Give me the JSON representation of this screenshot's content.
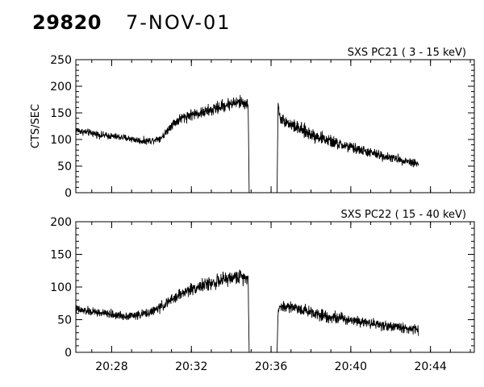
{
  "header": {
    "obs_id": "29820",
    "date": "7-NOV-01"
  },
  "chart_data": [
    {
      "type": "line",
      "title": "SXS PC21  (  3 - 15 keV)",
      "ylabel": "CTS/SEC",
      "xlabel": "",
      "x_unit": "minutes after 20:00 UT",
      "xlim": [
        26.2,
        46.2
      ],
      "ylim": [
        0,
        250
      ],
      "yticks": [
        0,
        50,
        100,
        150,
        200,
        250
      ],
      "xticks": [
        {
          "value": 28,
          "label": "20:28"
        },
        {
          "value": 32,
          "label": "20:32"
        },
        {
          "value": 36,
          "label": "20:36"
        },
        {
          "value": 40,
          "label": "20:40"
        },
        {
          "value": 44,
          "label": "20:44"
        }
      ],
      "gap": [
        34.9,
        36.3
      ],
      "series": [
        {
          "x": [
            26.2,
            26.5,
            27.0,
            27.5,
            28.0,
            28.5,
            29.0,
            29.5,
            30.0,
            30.5,
            30.7,
            31.0,
            31.5,
            32.0,
            32.5,
            33.0,
            33.5,
            34.0,
            34.5,
            34.7,
            34.85,
            34.9,
            36.3,
            36.35,
            36.45,
            37.0,
            37.5,
            38.0,
            38.5,
            39.0,
            39.5,
            40.0,
            40.5,
            41.0,
            41.5,
            42.0,
            42.5,
            43.0,
            43.4
          ],
          "y": [
            118,
            115,
            112,
            108,
            106,
            104,
            101,
            97,
            98,
            104,
            112,
            128,
            140,
            147,
            150,
            155,
            162,
            168,
            170,
            168,
            165,
            0,
            0,
            170,
            140,
            128,
            118,
            110,
            103,
            96,
            90,
            85,
            80,
            75,
            70,
            66,
            62,
            58,
            55
          ],
          "noise": [
            5,
            5,
            5,
            5,
            5,
            5,
            5,
            5,
            5,
            5,
            5,
            7,
            8,
            8,
            8,
            9,
            9,
            9,
            9,
            9,
            9,
            0,
            0,
            6,
            8,
            9,
            10,
            10,
            9,
            9,
            8,
            8,
            7,
            7,
            7,
            6,
            6,
            6,
            6
          ]
        }
      ]
    },
    {
      "type": "line",
      "title": "SXS PC22  ( 15 - 40 keV)",
      "ylabel": "",
      "xlabel": "",
      "x_unit": "minutes after 20:00 UT",
      "xlim": [
        26.2,
        46.2
      ],
      "ylim": [
        0,
        200
      ],
      "yticks": [
        0,
        50,
        100,
        150,
        200
      ],
      "xticks": [
        {
          "value": 28,
          "label": "20:28"
        },
        {
          "value": 32,
          "label": "20:32"
        },
        {
          "value": 36,
          "label": "20:36"
        },
        {
          "value": 40,
          "label": "20:40"
        },
        {
          "value": 44,
          "label": "20:44"
        }
      ],
      "gap": [
        34.9,
        36.3
      ],
      "series": [
        {
          "x": [
            26.2,
            26.5,
            27.0,
            27.5,
            28.0,
            28.5,
            29.0,
            29.5,
            30.0,
            30.5,
            31.0,
            31.5,
            32.0,
            32.5,
            33.0,
            33.5,
            34.0,
            34.5,
            34.85,
            34.9,
            36.3,
            36.35,
            36.45,
            37.0,
            37.5,
            38.0,
            38.5,
            39.0,
            39.5,
            40.0,
            40.5,
            41.0,
            41.5,
            42.0,
            42.5,
            43.0,
            43.4
          ],
          "y": [
            66,
            64,
            62,
            60,
            58,
            56,
            56,
            58,
            62,
            70,
            80,
            90,
            97,
            102,
            106,
            110,
            114,
            116,
            115,
            0,
            0,
            60,
            70,
            70,
            66,
            62,
            58,
            54,
            52,
            50,
            48,
            45,
            42,
            40,
            38,
            36,
            34
          ],
          "noise": [
            5,
            5,
            5,
            5,
            5,
            5,
            5,
            5,
            5,
            6,
            6,
            7,
            7,
            7,
            8,
            8,
            8,
            8,
            8,
            0,
            0,
            6,
            7,
            7,
            7,
            7,
            7,
            7,
            7,
            6,
            6,
            6,
            6,
            6,
            6,
            6,
            6
          ]
        }
      ]
    }
  ]
}
